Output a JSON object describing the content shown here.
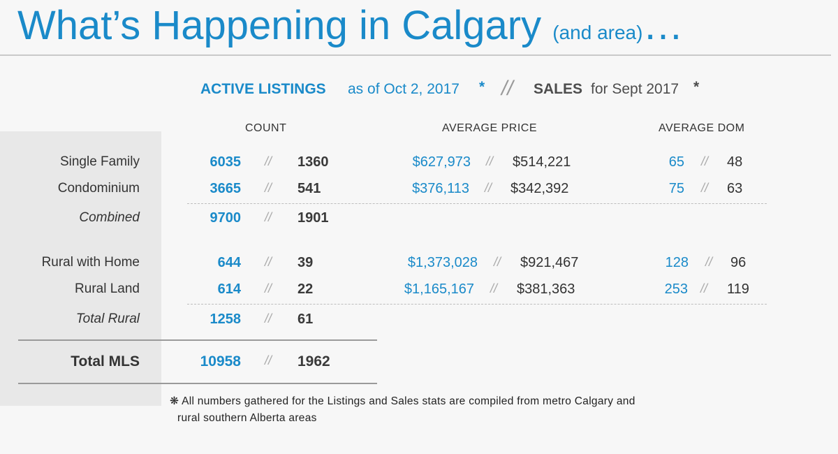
{
  "title": {
    "main": "What’s Happening in Calgary",
    "sub": "(and area)",
    "ellipsis": "…"
  },
  "heading": {
    "listings_strong": "ACTIVE LISTINGS",
    "listings_rest": "as of Oct 2, 2017",
    "listings_mark": "*",
    "separator": "//",
    "sales_strong": "SALES",
    "sales_rest": "for Sept 2017",
    "sales_mark": "*"
  },
  "columns": {
    "count": "COUNT",
    "price": "AVERAGE PRICE",
    "dom": "AVERAGE DOM"
  },
  "sep": "//",
  "rows": [
    {
      "label": "Single Family",
      "count_listings": "6035",
      "count_sales": "1360",
      "price_listings": "$627,973",
      "price_sales": "$514,221",
      "dom_listings": "65",
      "dom_sales": "48"
    },
    {
      "label": "Condominium",
      "count_listings": "3665",
      "count_sales": "541",
      "price_listings": "$376,113",
      "price_sales": "$342,392",
      "dom_listings": "75",
      "dom_sales": "63"
    },
    {
      "label": "Combined",
      "count_listings": "9700",
      "count_sales": "1901"
    },
    {
      "label": "Rural with Home",
      "count_listings": "644",
      "count_sales": "39",
      "price_listings": "$1,373,028",
      "price_sales": "$921,467",
      "dom_listings": "128",
      "dom_sales": "96"
    },
    {
      "label": "Rural Land",
      "count_listings": "614",
      "count_sales": "22",
      "price_listings": "$1,165,167",
      "price_sales": "$381,363",
      "dom_listings": "253",
      "dom_sales": "119"
    },
    {
      "label": "Total Rural",
      "count_listings": "1258",
      "count_sales": "61"
    },
    {
      "label": "Total MLS",
      "count_listings": "10958",
      "count_sales": "1962"
    }
  ],
  "footnote": {
    "mark": "❋",
    "line1": "All numbers gathered for the Listings and Sales stats are compiled from metro Calgary and",
    "line2": "rural southern Alberta areas"
  }
}
